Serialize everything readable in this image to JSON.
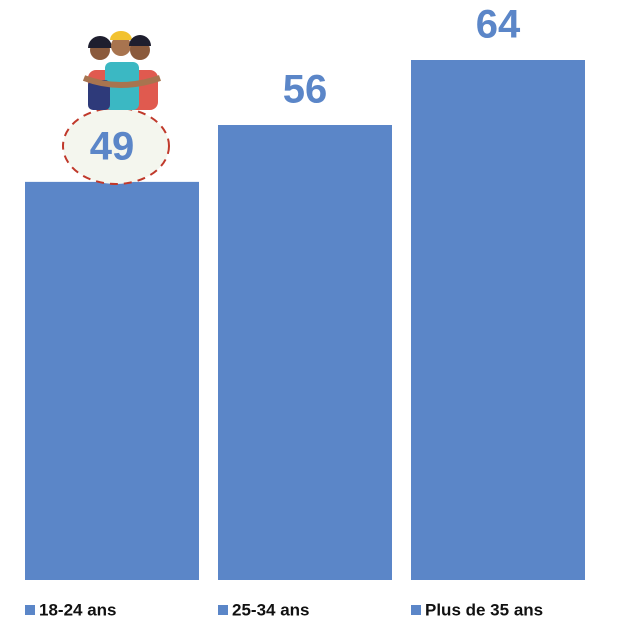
{
  "chart_data": {
    "type": "bar",
    "categories": [
      "18-24 ans",
      "25-34 ans",
      "Plus de 35 ans"
    ],
    "values": [
      49,
      56,
      64
    ],
    "color": "#5b86c8",
    "legend": "bottom"
  }
}
